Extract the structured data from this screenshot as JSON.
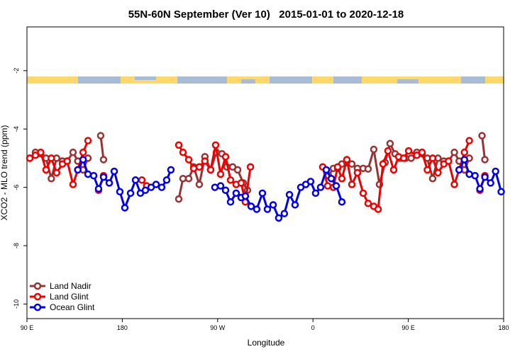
{
  "chart_data": {
    "type": "line",
    "title": "55N-60N September (Ver 10)   2015-01-01 to 2020-12-18",
    "x_label": "Longitude",
    "y_label": "XCO2 - MLO trend (ppm)",
    "xlim": [
      90,
      540
    ],
    "ylim": [
      -10.5,
      -0.5
    ],
    "xticks": [
      {
        "value": 90,
        "label": "90 E"
      },
      {
        "value": 180,
        "label": "180"
      },
      {
        "value": 270,
        "label": "90 W"
      },
      {
        "value": 360,
        "label": "0"
      },
      {
        "value": 450,
        "label": "90 E"
      },
      {
        "value": 540,
        "label": "180"
      }
    ],
    "yticks": [
      -10,
      -8,
      -6,
      -4,
      -2
    ],
    "legend": "bottomleft",
    "series": [
      {
        "name": "Land Nadir",
        "color": "#993333",
        "x": [
          92.7,
          98,
          103,
          108,
          113,
          118,
          123.5,
          128,
          133.5,
          138,
          143,
          147.6,
          null,
          159.6,
          162.3,
          null,
          233.3,
          237.3,
          242.7,
          247.4,
          252.7,
          258,
          263.4,
          268.8,
          274.1,
          278.8,
          284.2,
          288.9,
          294.2,
          298.2,
          null,
          374.6,
          379.3,
          383.3,
          387.3,
          392,
          396.7,
          402,
          407.4,
          412.1,
          417.4,
          422.8,
          428.1,
          432.8,
          437.5,
          442.5,
          447.5,
          452.7,
          458,
          463,
          468,
          473,
          478,
          483.5,
          488,
          493.5,
          498,
          503,
          507.6,
          null,
          519.6,
          522.3
        ],
        "values": [
          -5.0,
          -4.8,
          -4.85,
          -5.0,
          -5.7,
          -5.0,
          -5.1,
          -5.1,
          -4.8,
          -5.1,
          -5.4,
          -5.0,
          null,
          -4.23,
          -5.05,
          null,
          -6.4,
          -5.7,
          -5.7,
          -5.3,
          -5.9,
          -4.95,
          -5.4,
          -4.8,
          -4.85,
          -5.3,
          -5.3,
          -5.4,
          -5.85,
          -6.1,
          null,
          -5.6,
          -5.35,
          -5.35,
          -5.2,
          -5.15,
          -5.2,
          -5.35,
          -5.35,
          -5.37,
          -4.7,
          -5.9,
          -5.15,
          -4.5,
          -4.85,
          -5.0,
          -5.0,
          -5.0,
          -4.8,
          -4.85,
          -5.0,
          -5.7,
          -5.0,
          -5.1,
          -5.1,
          -4.8,
          -5.1,
          -5.4,
          -5.0,
          null,
          -4.23,
          -5.05
        ]
      },
      {
        "name": "Land Glint",
        "color": "#ee0000",
        "x": [
          92.7,
          98,
          103,
          108,
          113,
          118,
          123.5,
          128,
          133.5,
          138,
          143,
          147.6,
          null,
          157.6,
          162.3,
          null,
          198.5,
          203,
          null,
          233.3,
          237.3,
          242.7,
          247.4,
          252.7,
          258,
          263.4,
          268.1,
          272.8,
          277.5,
          282.2,
          287.5,
          292.2,
          296.2,
          301,
          null,
          369.2,
          373.9,
          379.3,
          383.3,
          387.3,
          392,
          396.7,
          402,
          407.4,
          412.1,
          417.4,
          421.5,
          426.1,
          430.8,
          436.2,
          440.9,
          445.6,
          450.3,
          458,
          463,
          468,
          473,
          478,
          483.5,
          488,
          493.5,
          498,
          503,
          507.6,
          null,
          517.6,
          522.3
        ],
        "values": [
          -5.0,
          -4.9,
          -4.8,
          -5.4,
          -5.0,
          -5.5,
          -5.2,
          -5.1,
          -5.9,
          -5.4,
          -4.8,
          -4.4,
          null,
          -6.1,
          -5.6,
          null,
          -5.75,
          -5.95,
          null,
          -4.55,
          -4.8,
          -5.05,
          -5.35,
          -5.3,
          -5.1,
          -5.4,
          -4.55,
          -5.55,
          -4.95,
          -5.75,
          -5.9,
          -5.85,
          -6.5,
          -5.3,
          null,
          -5.3,
          -5.95,
          -6.0,
          -5.3,
          -5.7,
          -5.05,
          -5.9,
          -5.5,
          -6.2,
          -6.55,
          -6.65,
          -6.75,
          -5.2,
          -4.75,
          -5.4,
          -4.95,
          -5.0,
          -4.75,
          -4.9,
          -4.8,
          -5.4,
          -5.0,
          -5.5,
          -5.2,
          -5.1,
          -5.9,
          -5.4,
          -4.8,
          -4.4,
          null,
          -6.1,
          -5.6
        ]
      },
      {
        "name": "Ocean Glint",
        "color": "#0000ee",
        "x": [
          138,
          143,
          147.6,
          153,
          157.6,
          162.3,
          167.7,
          172.4,
          177.7,
          182.4,
          187.8,
          192.5,
          197.1,
          201.8,
          207.2,
          211.9,
          217.2,
          221.9,
          225.9,
          null,
          267.4,
          272.8,
          277.5,
          282.2,
          287.5,
          292.2,
          296.2,
          301.6,
          306.9,
          312.3,
          317,
          322.4,
          327.7,
          333,
          337.8,
          343.1,
          348.5,
          353.2,
          357.8,
          362.5,
          367.2,
          372.6,
          377.3,
          382,
          387.3,
          null,
          498,
          503,
          507.6,
          513,
          517.6,
          522.3,
          527.7,
          532.4,
          537.7
        ],
        "values": [
          -5.4,
          -5.05,
          -5.55,
          -5.6,
          -6.05,
          -5.65,
          -5.85,
          -5.45,
          -6.15,
          -6.7,
          -6.2,
          -5.75,
          -6.2,
          -6.1,
          -6.0,
          -5.9,
          -6.0,
          -5.75,
          -5.4,
          null,
          -6.0,
          -5.95,
          -6.1,
          -6.5,
          -6.2,
          -6.35,
          -6.3,
          -6.65,
          -6.75,
          -6.2,
          -6.75,
          -6.6,
          -7.05,
          -6.9,
          -6.25,
          -6.6,
          -6.0,
          -5.9,
          -5.8,
          -6.2,
          -6.0,
          -5.4,
          -5.7,
          -5.95,
          -6.5,
          null,
          -5.4,
          -5.05,
          -5.55,
          -5.6,
          -6.05,
          -5.65,
          -5.85,
          -5.45,
          -6.15
        ]
      }
    ]
  }
}
